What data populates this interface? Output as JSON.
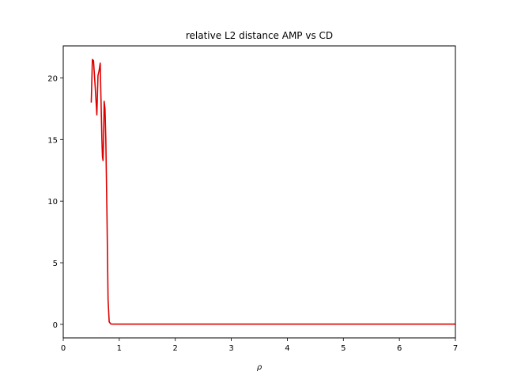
{
  "chart_data": {
    "type": "line",
    "title": "relative L2 distance AMP vs CD",
    "xlabel": "ρ",
    "ylabel": "",
    "xlim": [
      0,
      7
    ],
    "ylim": [
      -1.1,
      22.6
    ],
    "xticks": [
      0,
      1,
      2,
      3,
      4,
      5,
      6,
      7
    ],
    "yticks": [
      0,
      5,
      10,
      15,
      20
    ],
    "grid": false,
    "legend": "none",
    "series": [
      {
        "color": "#dd0000",
        "x": [
          0.5,
          0.52,
          0.54,
          0.57,
          0.6,
          0.62,
          0.64,
          0.66,
          0.67,
          0.69,
          0.7,
          0.71,
          0.72,
          0.73,
          0.745,
          0.76,
          0.78,
          0.8,
          0.82,
          0.85,
          0.9,
          1.0,
          2.0,
          3.0,
          4.0,
          5.0,
          6.0,
          7.0
        ],
        "y": [
          18.0,
          21.5,
          21.4,
          19.3,
          17.0,
          20.2,
          20.6,
          21.2,
          19.0,
          15.0,
          13.6,
          13.3,
          15.0,
          18.1,
          17.5,
          15.0,
          9.0,
          2.0,
          0.2,
          0.03,
          0.02,
          0.02,
          0.02,
          0.02,
          0.02,
          0.02,
          0.02,
          0.02
        ]
      }
    ]
  }
}
